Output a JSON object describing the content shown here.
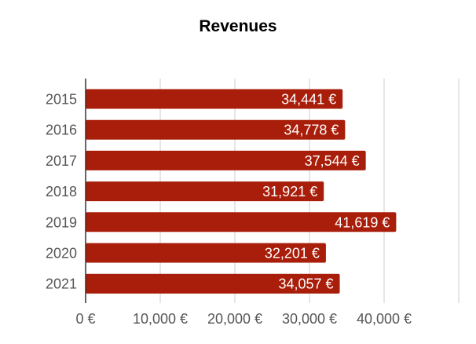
{
  "chart_data": {
    "type": "bar",
    "orientation": "horizontal",
    "title": "Revenues",
    "xlabel": "",
    "ylabel": "",
    "categories": [
      "2015",
      "2016",
      "2017",
      "2018",
      "2019",
      "2020",
      "2021"
    ],
    "values": [
      34441,
      34778,
      37544,
      31921,
      41619,
      32201,
      34057
    ],
    "value_labels": [
      "34,441 €",
      "34,778 €",
      "37,544 €",
      "31,921 €",
      "41,619 €",
      "32,201 €",
      "34,057 €"
    ],
    "xlim": [
      0,
      50000
    ],
    "xticks": [
      0,
      10000,
      20000,
      30000,
      40000
    ],
    "xtick_labels": [
      "0 €",
      "10,000 €",
      "20,000 €",
      "30,000 €",
      "40,000 €"
    ],
    "grid": true,
    "legend": "none",
    "colors": {
      "bar": "#a81e0a",
      "grid": "#cccccc",
      "axis": "#333333"
    }
  }
}
